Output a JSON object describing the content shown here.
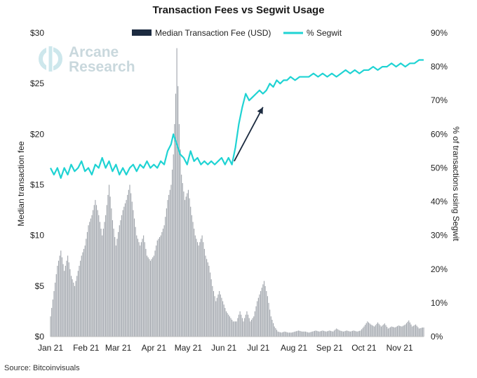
{
  "chart_data": {
    "type": "bar",
    "title": "Transaction Fees vs Segwit Usage",
    "ylabel": "Median transaction fee",
    "y2label": "% of transactions using Segwit",
    "ylim": [
      0,
      30
    ],
    "y2lim": [
      0,
      90
    ],
    "y_ticks": [
      "$0",
      "$5",
      "$10",
      "$15",
      "$20",
      "$25",
      "$30"
    ],
    "y2_ticks": [
      "0%",
      "10%",
      "20%",
      "30%",
      "40%",
      "50%",
      "60%",
      "70%",
      "80%",
      "90%"
    ],
    "x_ticks": [
      "Jan 21",
      "Feb 21",
      "Mar 21",
      "Apr 21",
      "May 21",
      "Jun 21",
      "Jul 21",
      "Aug 21",
      "Sep 21",
      "Oct 21",
      "Nov 21"
    ],
    "x_range": [
      "2021-01-01",
      "2021-11-22"
    ],
    "legend_position": "top-center",
    "source": "Source: Bitcoinvisuals",
    "watermark": [
      "Arcane",
      "Research"
    ],
    "series": [
      {
        "name": "Median Transaction Fee (USD)",
        "kind": "bar",
        "axis": "left",
        "color": "#9fa4ab",
        "legend_color": "#1c2b40",
        "points": [
          [
            "2021-01-01",
            2.0
          ],
          [
            "2021-01-04",
            4.5
          ],
          [
            "2021-01-07",
            7.0
          ],
          [
            "2021-01-10",
            8.5
          ],
          [
            "2021-01-13",
            6.5
          ],
          [
            "2021-01-16",
            8.0
          ],
          [
            "2021-01-19",
            6.0
          ],
          [
            "2021-01-22",
            5.0
          ],
          [
            "2021-01-25",
            6.5
          ],
          [
            "2021-01-28",
            8.0
          ],
          [
            "2021-01-31",
            9.0
          ],
          [
            "2021-02-03",
            11.0
          ],
          [
            "2021-02-06",
            12.0
          ],
          [
            "2021-02-09",
            13.5
          ],
          [
            "2021-02-12",
            12.0
          ],
          [
            "2021-02-15",
            10.0
          ],
          [
            "2021-02-18",
            12.0
          ],
          [
            "2021-02-21",
            15.0
          ],
          [
            "2021-02-24",
            11.5
          ],
          [
            "2021-02-27",
            9.0
          ],
          [
            "2021-03-02",
            11.0
          ],
          [
            "2021-03-05",
            12.5
          ],
          [
            "2021-03-08",
            13.5
          ],
          [
            "2021-03-11",
            15.0
          ],
          [
            "2021-03-14",
            12.5
          ],
          [
            "2021-03-17",
            10.0
          ],
          [
            "2021-03-20",
            9.0
          ],
          [
            "2021-03-23",
            10.0
          ],
          [
            "2021-03-26",
            8.0
          ],
          [
            "2021-03-29",
            7.5
          ],
          [
            "2021-04-01",
            8.0
          ],
          [
            "2021-04-04",
            9.5
          ],
          [
            "2021-04-07",
            10.0
          ],
          [
            "2021-04-10",
            11.0
          ],
          [
            "2021-04-13",
            13.5
          ],
          [
            "2021-04-16",
            15.0
          ],
          [
            "2021-04-18",
            18.0
          ],
          [
            "2021-04-20",
            24.0
          ],
          [
            "2021-04-21",
            28.5
          ],
          [
            "2021-04-23",
            21.0
          ],
          [
            "2021-04-25",
            16.0
          ],
          [
            "2021-04-28",
            13.5
          ],
          [
            "2021-05-01",
            14.5
          ],
          [
            "2021-05-04",
            12.0
          ],
          [
            "2021-05-07",
            10.0
          ],
          [
            "2021-05-10",
            9.0
          ],
          [
            "2021-05-13",
            10.0
          ],
          [
            "2021-05-16",
            8.0
          ],
          [
            "2021-05-19",
            7.0
          ],
          [
            "2021-05-22",
            5.0
          ],
          [
            "2021-05-25",
            3.5
          ],
          [
            "2021-05-28",
            4.5
          ],
          [
            "2021-05-31",
            3.5
          ],
          [
            "2021-06-03",
            2.5
          ],
          [
            "2021-06-06",
            2.0
          ],
          [
            "2021-06-09",
            1.5
          ],
          [
            "2021-06-12",
            1.5
          ],
          [
            "2021-06-15",
            2.5
          ],
          [
            "2021-06-18",
            1.5
          ],
          [
            "2021-06-21",
            2.5
          ],
          [
            "2021-06-24",
            1.5
          ],
          [
            "2021-06-27",
            2.0
          ],
          [
            "2021-06-30",
            3.5
          ],
          [
            "2021-07-03",
            4.5
          ],
          [
            "2021-07-06",
            5.5
          ],
          [
            "2021-07-09",
            4.0
          ],
          [
            "2021-07-12",
            2.0
          ],
          [
            "2021-07-15",
            1.0
          ],
          [
            "2021-07-18",
            0.5
          ],
          [
            "2021-07-21",
            0.4
          ],
          [
            "2021-07-24",
            0.5
          ],
          [
            "2021-07-27",
            0.4
          ],
          [
            "2021-07-30",
            0.4
          ],
          [
            "2021-08-02",
            0.5
          ],
          [
            "2021-08-05",
            0.6
          ],
          [
            "2021-08-08",
            0.5
          ],
          [
            "2021-08-11",
            0.5
          ],
          [
            "2021-08-14",
            0.4
          ],
          [
            "2021-08-17",
            0.5
          ],
          [
            "2021-08-20",
            0.6
          ],
          [
            "2021-08-23",
            0.5
          ],
          [
            "2021-08-26",
            0.6
          ],
          [
            "2021-08-29",
            0.5
          ],
          [
            "2021-09-01",
            0.6
          ],
          [
            "2021-09-04",
            0.5
          ],
          [
            "2021-09-07",
            0.8
          ],
          [
            "2021-09-10",
            0.6
          ],
          [
            "2021-09-13",
            0.5
          ],
          [
            "2021-09-16",
            0.6
          ],
          [
            "2021-09-19",
            0.5
          ],
          [
            "2021-09-22",
            0.6
          ],
          [
            "2021-09-25",
            0.5
          ],
          [
            "2021-09-28",
            0.6
          ],
          [
            "2021-10-01",
            1.0
          ],
          [
            "2021-10-04",
            1.5
          ],
          [
            "2021-10-07",
            1.2
          ],
          [
            "2021-10-10",
            1.0
          ],
          [
            "2021-10-13",
            1.4
          ],
          [
            "2021-10-16",
            1.0
          ],
          [
            "2021-10-19",
            1.3
          ],
          [
            "2021-10-22",
            0.8
          ],
          [
            "2021-10-25",
            1.0
          ],
          [
            "2021-10-28",
            0.9
          ],
          [
            "2021-10-31",
            1.1
          ],
          [
            "2021-11-03",
            1.0
          ],
          [
            "2021-11-06",
            1.2
          ],
          [
            "2021-11-09",
            1.6
          ],
          [
            "2021-11-12",
            1.0
          ],
          [
            "2021-11-15",
            1.2
          ],
          [
            "2021-11-18",
            0.8
          ],
          [
            "2021-11-21",
            0.9
          ]
        ]
      },
      {
        "name": "% Segwit",
        "kind": "line",
        "axis": "right",
        "color": "#1fd3d3",
        "points": [
          [
            "2021-01-01",
            50
          ],
          [
            "2021-01-04",
            48
          ],
          [
            "2021-01-07",
            50
          ],
          [
            "2021-01-10",
            47
          ],
          [
            "2021-01-13",
            50
          ],
          [
            "2021-01-16",
            48
          ],
          [
            "2021-01-19",
            51
          ],
          [
            "2021-01-22",
            49
          ],
          [
            "2021-01-25",
            50
          ],
          [
            "2021-01-28",
            52
          ],
          [
            "2021-01-31",
            49
          ],
          [
            "2021-02-03",
            50
          ],
          [
            "2021-02-06",
            48
          ],
          [
            "2021-02-09",
            51
          ],
          [
            "2021-02-12",
            50
          ],
          [
            "2021-02-15",
            53
          ],
          [
            "2021-02-18",
            50
          ],
          [
            "2021-02-21",
            52
          ],
          [
            "2021-02-24",
            49
          ],
          [
            "2021-02-27",
            51
          ],
          [
            "2021-03-02",
            48
          ],
          [
            "2021-03-05",
            50
          ],
          [
            "2021-03-08",
            48
          ],
          [
            "2021-03-11",
            50
          ],
          [
            "2021-03-14",
            51
          ],
          [
            "2021-03-17",
            49
          ],
          [
            "2021-03-20",
            51
          ],
          [
            "2021-03-23",
            50
          ],
          [
            "2021-03-26",
            52
          ],
          [
            "2021-03-29",
            50
          ],
          [
            "2021-04-01",
            51
          ],
          [
            "2021-04-04",
            50
          ],
          [
            "2021-04-07",
            52
          ],
          [
            "2021-04-10",
            51
          ],
          [
            "2021-04-13",
            55
          ],
          [
            "2021-04-16",
            57
          ],
          [
            "2021-04-18",
            60
          ],
          [
            "2021-04-21",
            57
          ],
          [
            "2021-04-24",
            54
          ],
          [
            "2021-04-27",
            53
          ],
          [
            "2021-04-30",
            51
          ],
          [
            "2021-05-03",
            55
          ],
          [
            "2021-05-06",
            52
          ],
          [
            "2021-05-09",
            53
          ],
          [
            "2021-05-12",
            51
          ],
          [
            "2021-05-15",
            52
          ],
          [
            "2021-05-18",
            51
          ],
          [
            "2021-05-21",
            52
          ],
          [
            "2021-05-24",
            51
          ],
          [
            "2021-05-27",
            52
          ],
          [
            "2021-05-30",
            53
          ],
          [
            "2021-06-02",
            51
          ],
          [
            "2021-06-05",
            53
          ],
          [
            "2021-06-08",
            51
          ],
          [
            "2021-06-11",
            56
          ],
          [
            "2021-06-14",
            63
          ],
          [
            "2021-06-17",
            68
          ],
          [
            "2021-06-20",
            72
          ],
          [
            "2021-06-23",
            70
          ],
          [
            "2021-06-26",
            71
          ],
          [
            "2021-06-29",
            72
          ],
          [
            "2021-07-02",
            73
          ],
          [
            "2021-07-05",
            72
          ],
          [
            "2021-07-08",
            73
          ],
          [
            "2021-07-11",
            75
          ],
          [
            "2021-07-14",
            74
          ],
          [
            "2021-07-17",
            76
          ],
          [
            "2021-07-20",
            75
          ],
          [
            "2021-07-23",
            76
          ],
          [
            "2021-07-26",
            76
          ],
          [
            "2021-07-29",
            77
          ],
          [
            "2021-08-02",
            76
          ],
          [
            "2021-08-06",
            77
          ],
          [
            "2021-08-10",
            77
          ],
          [
            "2021-08-14",
            77
          ],
          [
            "2021-08-18",
            78
          ],
          [
            "2021-08-22",
            77
          ],
          [
            "2021-08-26",
            78
          ],
          [
            "2021-08-30",
            77
          ],
          [
            "2021-09-03",
            78
          ],
          [
            "2021-09-07",
            77
          ],
          [
            "2021-09-11",
            78
          ],
          [
            "2021-09-15",
            79
          ],
          [
            "2021-09-19",
            78
          ],
          [
            "2021-09-23",
            79
          ],
          [
            "2021-09-27",
            78
          ],
          [
            "2021-10-01",
            79
          ],
          [
            "2021-10-05",
            79
          ],
          [
            "2021-10-09",
            80
          ],
          [
            "2021-10-13",
            79
          ],
          [
            "2021-10-17",
            80
          ],
          [
            "2021-10-21",
            80
          ],
          [
            "2021-10-25",
            81
          ],
          [
            "2021-10-29",
            80
          ],
          [
            "2021-11-02",
            81
          ],
          [
            "2021-11-06",
            80
          ],
          [
            "2021-11-10",
            81
          ],
          [
            "2021-11-14",
            81
          ],
          [
            "2021-11-18",
            82
          ],
          [
            "2021-11-22",
            82
          ]
        ]
      }
    ],
    "annotations": [
      {
        "type": "arrow",
        "from": [
          "2021-06-10",
          52
        ],
        "to": [
          "2021-07-05",
          68
        ],
        "axis": "right",
        "color": "#1c2b40"
      }
    ]
  }
}
